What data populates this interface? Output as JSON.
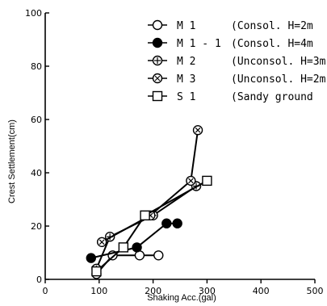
{
  "chart_data": {
    "type": "line",
    "xlabel": "Shaking Acc.(gal)",
    "ylabel": "Crest Settlement(cm)",
    "xlim": [
      0,
      500
    ],
    "ylim": [
      0,
      100
    ],
    "xticks": [
      0,
      100,
      200,
      300,
      400,
      500
    ],
    "yticks": [
      0,
      20,
      40,
      60,
      80,
      100
    ],
    "grid": false,
    "legend_position": "top-right",
    "series": [
      {
        "label": "M 1",
        "condition": "(Consol. H=2m",
        "marker": "open-circle",
        "x": [
          95,
          125,
          175,
          210
        ],
        "y": [
          2,
          9,
          9,
          9
        ]
      },
      {
        "label": "M 1 - 1",
        "condition": "(Consol. H=4m",
        "marker": "filled-circle",
        "x": [
          85,
          170,
          225,
          245
        ],
        "y": [
          8,
          12,
          21,
          21
        ]
      },
      {
        "label": "M 2",
        "condition": "(Unconsol. H=3m",
        "marker": "circle-plus",
        "x": [
          95,
          120,
          200,
          280
        ],
        "y": [
          4,
          16,
          24,
          35
        ]
      },
      {
        "label": "M 3",
        "condition": "(Unconsol. H=2m",
        "marker": "circle-cross",
        "x": [
          105,
          195,
          270,
          283
        ],
        "y": [
          14,
          24,
          37,
          56
        ]
      },
      {
        "label": "S 1",
        "condition": "(Sandy ground",
        "marker": "open-square",
        "x": [
          95,
          145,
          185,
          300
        ],
        "y": [
          3,
          12,
          24,
          37
        ]
      }
    ]
  }
}
